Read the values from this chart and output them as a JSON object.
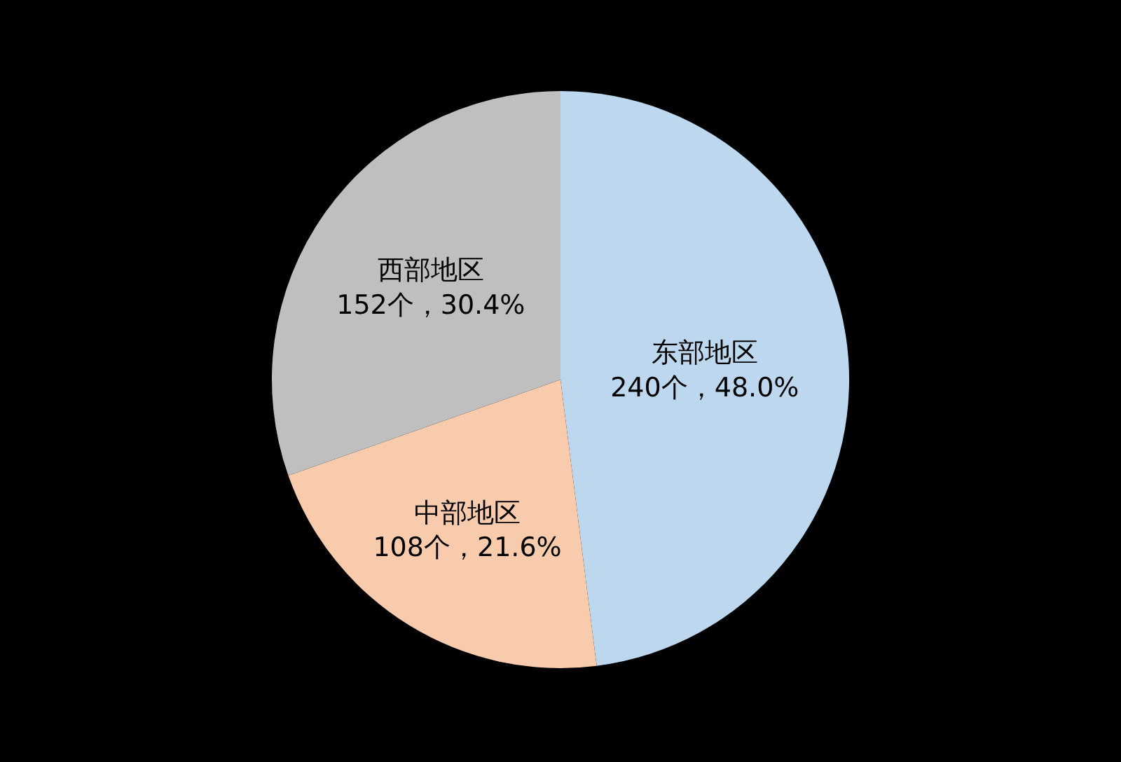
{
  "chart_data": {
    "type": "pie",
    "categories": [
      "东部地区",
      "中部地区",
      "西部地区"
    ],
    "values": [
      240,
      108,
      152
    ],
    "colors": [
      "#bdd7ee",
      "#f8cbad",
      "#bfbfbf"
    ],
    "value_labels": [
      "240个，48.0%",
      "108个，21.6%",
      "152个，30.4%"
    ]
  }
}
